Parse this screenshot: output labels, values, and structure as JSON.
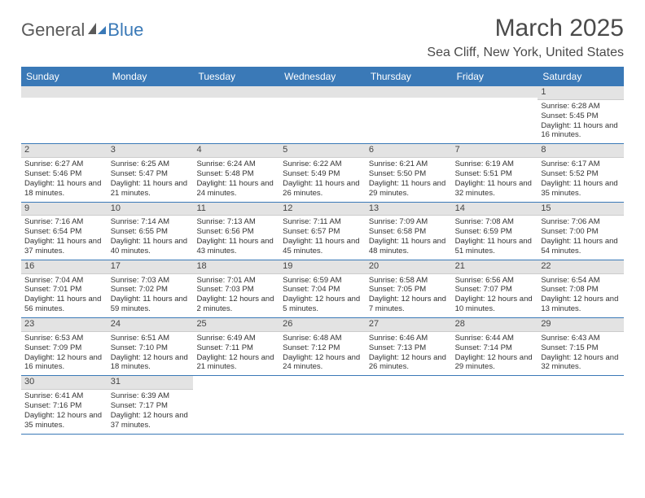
{
  "brand": {
    "part1": "General",
    "part2": "Blue"
  },
  "title": "March 2025",
  "location": "Sea Cliff, New York, United States",
  "logo_colors": {
    "gray": "#5a5a5a",
    "blue": "#3a79b7"
  },
  "header_bg": "#3a79b7",
  "header_fg": "#ffffff",
  "daybar_bg": "#e3e3e3",
  "days": [
    "Sunday",
    "Monday",
    "Tuesday",
    "Wednesday",
    "Thursday",
    "Friday",
    "Saturday"
  ],
  "weeks": [
    [
      {
        "n": "",
        "sr": "",
        "ss": "",
        "dl": ""
      },
      {
        "n": "",
        "sr": "",
        "ss": "",
        "dl": ""
      },
      {
        "n": "",
        "sr": "",
        "ss": "",
        "dl": ""
      },
      {
        "n": "",
        "sr": "",
        "ss": "",
        "dl": ""
      },
      {
        "n": "",
        "sr": "",
        "ss": "",
        "dl": ""
      },
      {
        "n": "",
        "sr": "",
        "ss": "",
        "dl": ""
      },
      {
        "n": "1",
        "sr": "Sunrise: 6:28 AM",
        "ss": "Sunset: 5:45 PM",
        "dl": "Daylight: 11 hours and 16 minutes."
      }
    ],
    [
      {
        "n": "2",
        "sr": "Sunrise: 6:27 AM",
        "ss": "Sunset: 5:46 PM",
        "dl": "Daylight: 11 hours and 18 minutes."
      },
      {
        "n": "3",
        "sr": "Sunrise: 6:25 AM",
        "ss": "Sunset: 5:47 PM",
        "dl": "Daylight: 11 hours and 21 minutes."
      },
      {
        "n": "4",
        "sr": "Sunrise: 6:24 AM",
        "ss": "Sunset: 5:48 PM",
        "dl": "Daylight: 11 hours and 24 minutes."
      },
      {
        "n": "5",
        "sr": "Sunrise: 6:22 AM",
        "ss": "Sunset: 5:49 PM",
        "dl": "Daylight: 11 hours and 26 minutes."
      },
      {
        "n": "6",
        "sr": "Sunrise: 6:21 AM",
        "ss": "Sunset: 5:50 PM",
        "dl": "Daylight: 11 hours and 29 minutes."
      },
      {
        "n": "7",
        "sr": "Sunrise: 6:19 AM",
        "ss": "Sunset: 5:51 PM",
        "dl": "Daylight: 11 hours and 32 minutes."
      },
      {
        "n": "8",
        "sr": "Sunrise: 6:17 AM",
        "ss": "Sunset: 5:52 PM",
        "dl": "Daylight: 11 hours and 35 minutes."
      }
    ],
    [
      {
        "n": "9",
        "sr": "Sunrise: 7:16 AM",
        "ss": "Sunset: 6:54 PM",
        "dl": "Daylight: 11 hours and 37 minutes."
      },
      {
        "n": "10",
        "sr": "Sunrise: 7:14 AM",
        "ss": "Sunset: 6:55 PM",
        "dl": "Daylight: 11 hours and 40 minutes."
      },
      {
        "n": "11",
        "sr": "Sunrise: 7:13 AM",
        "ss": "Sunset: 6:56 PM",
        "dl": "Daylight: 11 hours and 43 minutes."
      },
      {
        "n": "12",
        "sr": "Sunrise: 7:11 AM",
        "ss": "Sunset: 6:57 PM",
        "dl": "Daylight: 11 hours and 45 minutes."
      },
      {
        "n": "13",
        "sr": "Sunrise: 7:09 AM",
        "ss": "Sunset: 6:58 PM",
        "dl": "Daylight: 11 hours and 48 minutes."
      },
      {
        "n": "14",
        "sr": "Sunrise: 7:08 AM",
        "ss": "Sunset: 6:59 PM",
        "dl": "Daylight: 11 hours and 51 minutes."
      },
      {
        "n": "15",
        "sr": "Sunrise: 7:06 AM",
        "ss": "Sunset: 7:00 PM",
        "dl": "Daylight: 11 hours and 54 minutes."
      }
    ],
    [
      {
        "n": "16",
        "sr": "Sunrise: 7:04 AM",
        "ss": "Sunset: 7:01 PM",
        "dl": "Daylight: 11 hours and 56 minutes."
      },
      {
        "n": "17",
        "sr": "Sunrise: 7:03 AM",
        "ss": "Sunset: 7:02 PM",
        "dl": "Daylight: 11 hours and 59 minutes."
      },
      {
        "n": "18",
        "sr": "Sunrise: 7:01 AM",
        "ss": "Sunset: 7:03 PM",
        "dl": "Daylight: 12 hours and 2 minutes."
      },
      {
        "n": "19",
        "sr": "Sunrise: 6:59 AM",
        "ss": "Sunset: 7:04 PM",
        "dl": "Daylight: 12 hours and 5 minutes."
      },
      {
        "n": "20",
        "sr": "Sunrise: 6:58 AM",
        "ss": "Sunset: 7:05 PM",
        "dl": "Daylight: 12 hours and 7 minutes."
      },
      {
        "n": "21",
        "sr": "Sunrise: 6:56 AM",
        "ss": "Sunset: 7:07 PM",
        "dl": "Daylight: 12 hours and 10 minutes."
      },
      {
        "n": "22",
        "sr": "Sunrise: 6:54 AM",
        "ss": "Sunset: 7:08 PM",
        "dl": "Daylight: 12 hours and 13 minutes."
      }
    ],
    [
      {
        "n": "23",
        "sr": "Sunrise: 6:53 AM",
        "ss": "Sunset: 7:09 PM",
        "dl": "Daylight: 12 hours and 16 minutes."
      },
      {
        "n": "24",
        "sr": "Sunrise: 6:51 AM",
        "ss": "Sunset: 7:10 PM",
        "dl": "Daylight: 12 hours and 18 minutes."
      },
      {
        "n": "25",
        "sr": "Sunrise: 6:49 AM",
        "ss": "Sunset: 7:11 PM",
        "dl": "Daylight: 12 hours and 21 minutes."
      },
      {
        "n": "26",
        "sr": "Sunrise: 6:48 AM",
        "ss": "Sunset: 7:12 PM",
        "dl": "Daylight: 12 hours and 24 minutes."
      },
      {
        "n": "27",
        "sr": "Sunrise: 6:46 AM",
        "ss": "Sunset: 7:13 PM",
        "dl": "Daylight: 12 hours and 26 minutes."
      },
      {
        "n": "28",
        "sr": "Sunrise: 6:44 AM",
        "ss": "Sunset: 7:14 PM",
        "dl": "Daylight: 12 hours and 29 minutes."
      },
      {
        "n": "29",
        "sr": "Sunrise: 6:43 AM",
        "ss": "Sunset: 7:15 PM",
        "dl": "Daylight: 12 hours and 32 minutes."
      }
    ],
    [
      {
        "n": "30",
        "sr": "Sunrise: 6:41 AM",
        "ss": "Sunset: 7:16 PM",
        "dl": "Daylight: 12 hours and 35 minutes."
      },
      {
        "n": "31",
        "sr": "Sunrise: 6:39 AM",
        "ss": "Sunset: 7:17 PM",
        "dl": "Daylight: 12 hours and 37 minutes."
      },
      {
        "n": "",
        "sr": "",
        "ss": "",
        "dl": ""
      },
      {
        "n": "",
        "sr": "",
        "ss": "",
        "dl": ""
      },
      {
        "n": "",
        "sr": "",
        "ss": "",
        "dl": ""
      },
      {
        "n": "",
        "sr": "",
        "ss": "",
        "dl": ""
      },
      {
        "n": "",
        "sr": "",
        "ss": "",
        "dl": ""
      }
    ]
  ]
}
